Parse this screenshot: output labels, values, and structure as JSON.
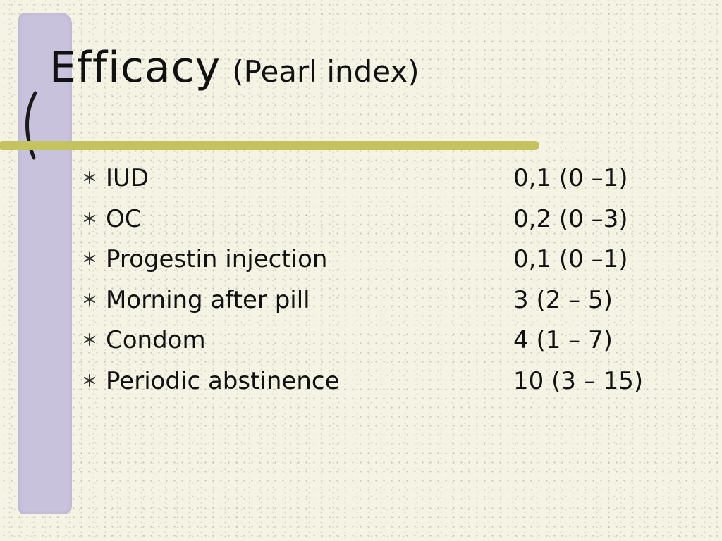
{
  "slide": {
    "title": "Efficacy",
    "subtitle": "(Pearl index)",
    "colors": {
      "background": "#f4f3e4",
      "sidebar": "#c9c2dd",
      "accent_bar": "#c5c360",
      "text": "#111111"
    },
    "bullet_icon": "asterisk-bullet-icon",
    "items": [
      {
        "label": "IUD",
        "value": "0,1 (0 –1)"
      },
      {
        "label": "OC",
        "value": "0,2 (0 –3)"
      },
      {
        "label": "Progestin injection",
        "value": "0,1 (0 –1)"
      },
      {
        "label": "Morning after pill",
        "value": "3 (2 – 5)"
      },
      {
        "label": "Condom",
        "value": "4 (1 – 7)"
      },
      {
        "label": "Periodic abstinence",
        "value": "10 (3 – 15)"
      }
    ]
  }
}
